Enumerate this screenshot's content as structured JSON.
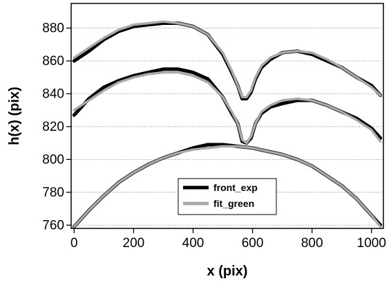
{
  "chart_data": {
    "type": "line",
    "xlabel": "x (pix)",
    "ylabel": "h(x) (pix)",
    "xlim": [
      -10,
      1040
    ],
    "ylim": [
      758,
      895
    ],
    "xticks": [
      0,
      200,
      400,
      600,
      800,
      1000
    ],
    "yticks": [
      760,
      780,
      800,
      820,
      840,
      860,
      880
    ],
    "grid": "horizontal dotted",
    "legend": {
      "position": "bottom-center",
      "entries": [
        "front_exp",
        "fit_green"
      ]
    },
    "colors": {
      "front_exp": "#000000",
      "fit_green": "#a9a9a9"
    },
    "series": [
      {
        "name": "front_exp",
        "curves": [
          {
            "x": [
              0,
              50,
              100,
              150,
              200,
              250,
              300,
              350,
              400,
              450,
              500,
              530,
              550,
              565,
              580,
              595,
              610,
              630,
              660,
              700,
              750,
              800,
              850,
              900,
              950,
              1000,
              1030
            ],
            "y": [
              860,
              866,
              873,
              878,
              881,
              882,
              883,
              883,
              881,
              876,
              864,
              853,
              845,
              837,
              837,
              841,
              849,
              856,
              861,
              865,
              866,
              864,
              860,
              856,
              850,
              845,
              839
            ]
          },
          {
            "x": [
              0,
              50,
              100,
              150,
              200,
              250,
              300,
              350,
              400,
              450,
              500,
              530,
              550,
              565,
              580,
              595,
              610,
              630,
              660,
              700,
              750,
              800,
              850,
              900,
              950,
              1000,
              1030
            ],
            "y": [
              827,
              837,
              844,
              848,
              851,
              853,
              855,
              855,
              853,
              849,
              838,
              828,
              822,
              811,
              810,
              813,
              822,
              828,
              832,
              834,
              836,
              836,
              833,
              829,
              825,
              819,
              813
            ]
          },
          {
            "x": [
              0,
              50,
              100,
              150,
              200,
              250,
              300,
              350,
              400,
              450,
              500,
              550,
              600,
              650,
              700,
              750,
              800,
              850,
              900,
              950,
              1000,
              1030
            ],
            "y": [
              759,
              769,
              778,
              786,
              792,
              797,
              801,
              804,
              807,
              809,
              809,
              808,
              807,
              805,
              803,
              800,
              796,
              790,
              784,
              776,
              766,
              760
            ]
          }
        ]
      },
      {
        "name": "fit_green",
        "curves": [
          {
            "x": [
              0,
              50,
              100,
              150,
              200,
              250,
              300,
              350,
              400,
              450,
              500,
              530,
              550,
              565,
              580,
              595,
              610,
              630,
              660,
              700,
              750,
              800,
              850,
              900,
              950,
              1000,
              1030
            ],
            "y": [
              862,
              868,
              874,
              879,
              882,
              883,
              884,
              883,
              881,
              876,
              865,
              854,
              845,
              838,
              838,
              842,
              850,
              857,
              862,
              865,
              866,
              865,
              861,
              856,
              850,
              844,
              839
            ]
          },
          {
            "x": [
              0,
              50,
              100,
              150,
              200,
              250,
              300,
              350,
              400,
              450,
              500,
              530,
              550,
              565,
              580,
              595,
              610,
              630,
              660,
              700,
              750,
              800,
              850,
              900,
              950,
              1000,
              1030
            ],
            "y": [
              830,
              836,
              842,
              847,
              850,
              852,
              853,
              853,
              851,
              847,
              838,
              829,
              822,
              812,
              810,
              814,
              822,
              829,
              833,
              836,
              837,
              836,
              833,
              829,
              824,
              818,
              811
            ]
          },
          {
            "x": [
              0,
              50,
              100,
              150,
              200,
              250,
              300,
              350,
              400,
              450,
              500,
              550,
              600,
              650,
              700,
              750,
              800,
              850,
              900,
              950,
              1000,
              1030
            ],
            "y": [
              759,
              769,
              778,
              786,
              792,
              797,
              801,
              804,
              806,
              807,
              808,
              808,
              807,
              805,
              803,
              800,
              796,
              790,
              784,
              776,
              766,
              759
            ]
          }
        ]
      }
    ]
  }
}
